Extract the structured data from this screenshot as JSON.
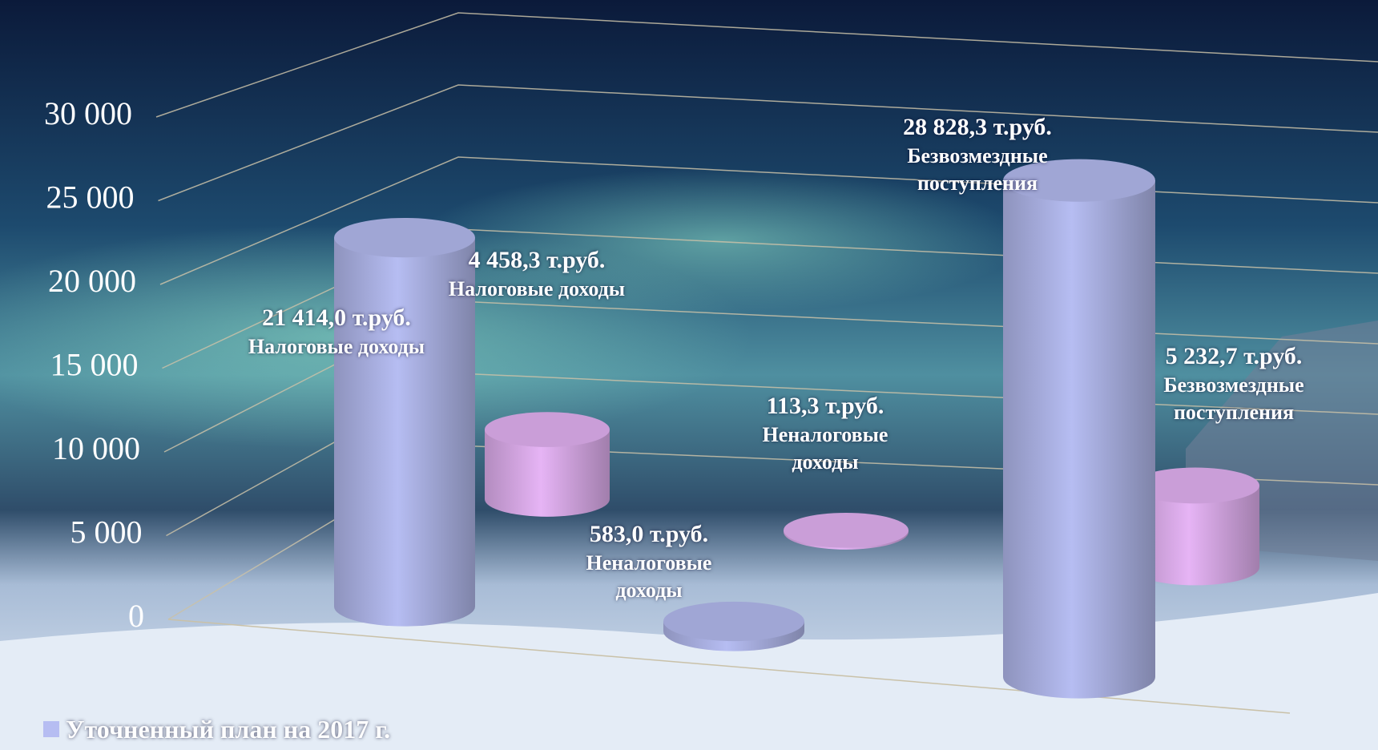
{
  "chart_data": {
    "type": "bar3d",
    "categories": [
      "Налоговые доходы",
      "Неналоговые доходы",
      "Безвозмездные поступления"
    ],
    "series": [
      {
        "name": "Уточненный план на 2017 г.",
        "color": "#b6bdf2",
        "values": [
          21414.0,
          583.0,
          28828.3
        ],
        "value_labels": [
          "21 414,0 т.руб.",
          "583,0 т.руб.",
          "28 828,3 т.руб."
        ]
      },
      {
        "color": "#e6b4f5",
        "values": [
          4458.3,
          113.3,
          5232.7
        ],
        "value_labels": [
          "4 458,3 т.руб.",
          "113,3 т.руб.",
          "5 232,7 т.руб."
        ]
      }
    ],
    "ylim": [
      0,
      30000
    ],
    "yticks": [
      {
        "value": 0,
        "label": "0"
      },
      {
        "value": 5000,
        "label": "5 000"
      },
      {
        "value": 10000,
        "label": "10 000"
      },
      {
        "value": 15000,
        "label": "15 000"
      },
      {
        "value": 20000,
        "label": "20 000"
      },
      {
        "value": 25000,
        "label": "25 000"
      },
      {
        "value": 30000,
        "label": "30 000"
      }
    ],
    "grid": true
  }
}
